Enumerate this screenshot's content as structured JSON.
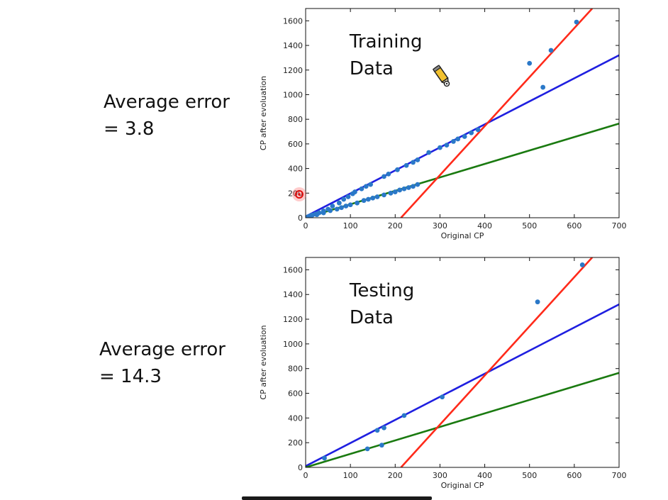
{
  "side_labels": {
    "top": {
      "line1": "Average error",
      "line2": "= 3.8"
    },
    "bottom": {
      "line1": "Average error",
      "line2": "= 14.3"
    }
  },
  "icons": {
    "cursor": "red-cursor-dot-icon",
    "annotation_pen": "pen-annotation-icon"
  },
  "colors": {
    "blue_line": "#1f1fe0",
    "red_line": "#ff2a1a",
    "green_line": "#1a7a10",
    "points": "#2a78c8"
  },
  "chart_data": [
    {
      "type": "scatter",
      "title": "",
      "annotation": {
        "line1": "Training",
        "line2": "Data"
      },
      "xlabel": "Original CP",
      "ylabel": "CP after evoluation",
      "xlim": [
        0,
        700
      ],
      "ylim": [
        0,
        1700
      ],
      "xticks": [
        "0",
        "100",
        "200",
        "300",
        "400",
        "500",
        "600",
        "700"
      ],
      "yticks": [
        "0",
        "200",
        "400",
        "600",
        "800",
        "1000",
        "1200",
        "1400",
        "1600"
      ],
      "lines": [
        {
          "color": "#1f1fe0",
          "x": [
            0,
            700
          ],
          "y": [
            10,
            1320
          ]
        },
        {
          "color": "#1a7a10",
          "x": [
            0,
            700
          ],
          "y": [
            0,
            765
          ]
        },
        {
          "color": "#ff2a1a",
          "x": [
            213,
            640
          ],
          "y": [
            0,
            1700
          ]
        }
      ],
      "points": [
        [
          5,
          8
        ],
        [
          10,
          15
        ],
        [
          15,
          22
        ],
        [
          22,
          30
        ],
        [
          30,
          40
        ],
        [
          40,
          55
        ],
        [
          50,
          70
        ],
        [
          60,
          95
        ],
        [
          75,
          120
        ],
        [
          85,
          150
        ],
        [
          95,
          170
        ],
        [
          105,
          195
        ],
        [
          110,
          210
        ],
        [
          125,
          235
        ],
        [
          135,
          255
        ],
        [
          145,
          270
        ],
        [
          175,
          335
        ],
        [
          185,
          355
        ],
        [
          205,
          390
        ],
        [
          225,
          425
        ],
        [
          240,
          450
        ],
        [
          250,
          470
        ],
        [
          275,
          530
        ],
        [
          300,
          570
        ],
        [
          315,
          590
        ],
        [
          330,
          620
        ],
        [
          340,
          640
        ],
        [
          355,
          660
        ],
        [
          370,
          690
        ],
        [
          385,
          715
        ],
        [
          12,
          12
        ],
        [
          25,
          25
        ],
        [
          40,
          40
        ],
        [
          55,
          58
        ],
        [
          70,
          70
        ],
        [
          80,
          82
        ],
        [
          90,
          95
        ],
        [
          100,
          105
        ],
        [
          115,
          120
        ],
        [
          130,
          140
        ],
        [
          140,
          150
        ],
        [
          150,
          160
        ],
        [
          160,
          170
        ],
        [
          175,
          185
        ],
        [
          190,
          200
        ],
        [
          200,
          210
        ],
        [
          210,
          225
        ],
        [
          220,
          235
        ],
        [
          230,
          245
        ],
        [
          240,
          255
        ],
        [
          250,
          270
        ],
        [
          500,
          1255
        ],
        [
          530,
          1060
        ],
        [
          548,
          1360
        ],
        [
          605,
          1590
        ]
      ]
    },
    {
      "type": "scatter",
      "title": "",
      "annotation": {
        "line1": "Testing",
        "line2": "Data"
      },
      "xlabel": "Original CP",
      "ylabel": "CP after evoluation",
      "xlim": [
        0,
        700
      ],
      "ylim": [
        0,
        1700
      ],
      "xticks": [
        "0",
        "100",
        "200",
        "300",
        "400",
        "500",
        "600",
        "700"
      ],
      "yticks": [
        "0",
        "200",
        "400",
        "600",
        "800",
        "1000",
        "1200",
        "1400",
        "1600"
      ],
      "lines": [
        {
          "color": "#1f1fe0",
          "x": [
            0,
            700
          ],
          "y": [
            10,
            1320
          ]
        },
        {
          "color": "#1a7a10",
          "x": [
            0,
            700
          ],
          "y": [
            0,
            765
          ]
        },
        {
          "color": "#ff2a1a",
          "x": [
            213,
            640
          ],
          "y": [
            0,
            1700
          ]
        }
      ],
      "points": [
        [
          42,
          75
        ],
        [
          138,
          150
        ],
        [
          170,
          180
        ],
        [
          160,
          300
        ],
        [
          175,
          320
        ],
        [
          220,
          420
        ],
        [
          305,
          570
        ],
        [
          518,
          1340
        ],
        [
          618,
          1640
        ]
      ]
    }
  ]
}
